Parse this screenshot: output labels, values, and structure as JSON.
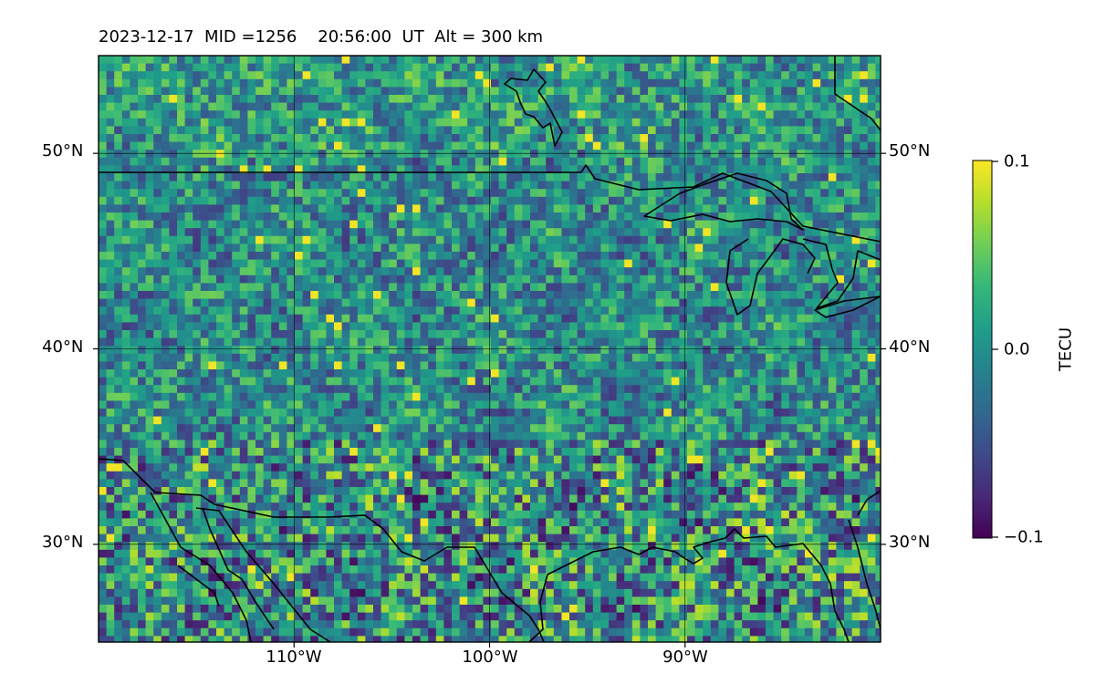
{
  "header": {
    "title": "2023-12-17  MID =1256    20:56:00  UT  Alt = 300 km"
  },
  "map": {
    "extent": {
      "lon": [
        -120,
        -80
      ],
      "lat": [
        25,
        55
      ]
    },
    "lat_ticks": [
      {
        "value": 30,
        "label": "30°N"
      },
      {
        "value": 40,
        "label": "40°N"
      },
      {
        "value": 50,
        "label": "50°N"
      }
    ],
    "lon_ticks": [
      {
        "value": -110,
        "label": "110°W"
      },
      {
        "value": -100,
        "label": "100°W"
      },
      {
        "value": -90,
        "label": "90°W"
      }
    ],
    "gridlines": true,
    "colormap": "viridis"
  },
  "colorbar": {
    "label": "TECU",
    "min": -0.1,
    "max": 0.1,
    "ticks": [
      {
        "value": 0.1,
        "label": "0.1"
      },
      {
        "value": 0.0,
        "label": "0.0"
      },
      {
        "value": -0.1,
        "label": "−0.1"
      }
    ],
    "colors": [
      "#440154",
      "#482878",
      "#3e4a89",
      "#31688e",
      "#26828e",
      "#1f9e89",
      "#35b779",
      "#6ece58",
      "#b5de2b",
      "#fde725"
    ]
  }
}
